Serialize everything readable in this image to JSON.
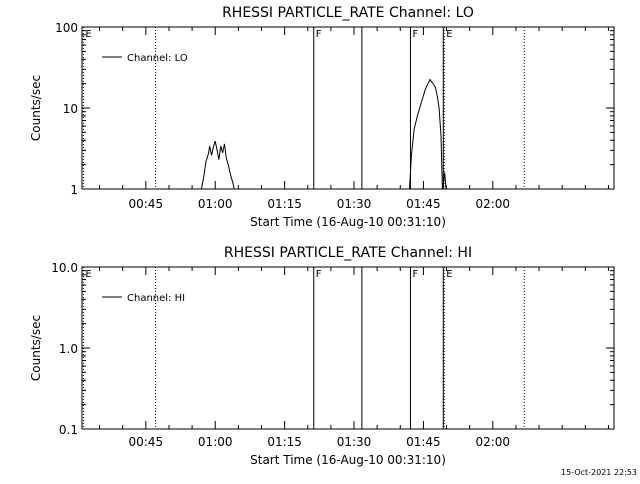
{
  "timestamp": "15-Oct-2021 22:53",
  "chart_data": [
    {
      "type": "line",
      "title": "RHESSI PARTICLE_RATE Channel: LO",
      "xlabel": "Start Time (16-Aug-10 00:31:10)",
      "ylabel": "Counts/sec",
      "y_scale": "log",
      "ylim": [
        1,
        100
      ],
      "y_ticks": [
        "1",
        "10",
        "100"
      ],
      "y_tick_values": [
        1,
        10,
        100
      ],
      "x_unit": "minutes after 00:31:10",
      "xlim": [
        0,
        115
      ],
      "x_ticks": [
        "00:45",
        "01:00",
        "01:15",
        "01:30",
        "01:45",
        "02:00"
      ],
      "x_tick_values": [
        13.8,
        28.8,
        43.8,
        58.8,
        73.8,
        88.8
      ],
      "legend": {
        "position": "top-left",
        "entries": [
          "Channel: LO"
        ]
      },
      "markers": [
        {
          "x": 0.3,
          "label": "E",
          "style": "dotted"
        },
        {
          "x": 15.9,
          "label": "",
          "style": "dotted"
        },
        {
          "x": 50.1,
          "label": "F",
          "style": "solid"
        },
        {
          "x": 60.5,
          "label": "",
          "style": "solid"
        },
        {
          "x": 71.0,
          "label": "F",
          "style": "solid"
        },
        {
          "x": 78.1,
          "label": "",
          "style": "solid"
        },
        {
          "x": 78.3,
          "label": "E",
          "style": "dotted"
        },
        {
          "x": 95.6,
          "label": "",
          "style": "dotted"
        }
      ],
      "series": [
        {
          "name": "Channel: LO",
          "segments": [
            [
              {
                "x": 25.8,
                "y": 1.0
              },
              {
                "x": 26.3,
                "y": 1.4
              },
              {
                "x": 26.8,
                "y": 2.2
              },
              {
                "x": 27.3,
                "y": 2.7
              },
              {
                "x": 27.6,
                "y": 3.4
              },
              {
                "x": 28.0,
                "y": 2.6
              },
              {
                "x": 28.4,
                "y": 3.3
              },
              {
                "x": 28.8,
                "y": 3.9
              },
              {
                "x": 29.2,
                "y": 3.0
              },
              {
                "x": 29.6,
                "y": 2.3
              },
              {
                "x": 30.0,
                "y": 3.4
              },
              {
                "x": 30.4,
                "y": 2.8
              },
              {
                "x": 30.8,
                "y": 3.6
              },
              {
                "x": 31.2,
                "y": 2.4
              },
              {
                "x": 31.6,
                "y": 2.0
              },
              {
                "x": 32.1,
                "y": 1.5
              },
              {
                "x": 32.6,
                "y": 1.2
              },
              {
                "x": 32.9,
                "y": 1.0
              }
            ],
            [
              {
                "x": 70.8,
                "y": 1.0
              },
              {
                "x": 71.2,
                "y": 2.6
              },
              {
                "x": 71.8,
                "y": 5.5
              },
              {
                "x": 72.5,
                "y": 8.0
              },
              {
                "x": 73.4,
                "y": 12.0
              },
              {
                "x": 74.2,
                "y": 17.0
              },
              {
                "x": 74.8,
                "y": 20.0
              },
              {
                "x": 75.2,
                "y": 22.5
              },
              {
                "x": 75.6,
                "y": 21.0
              },
              {
                "x": 76.0,
                "y": 19.5
              },
              {
                "x": 76.4,
                "y": 18.0
              },
              {
                "x": 76.8,
                "y": 14.0
              },
              {
                "x": 77.2,
                "y": 10.0
              },
              {
                "x": 77.6,
                "y": 4.5
              },
              {
                "x": 77.9,
                "y": 1.0
              }
            ],
            [
              {
                "x": 78.0,
                "y": 1.0
              },
              {
                "x": 78.4,
                "y": 1.6
              },
              {
                "x": 78.7,
                "y": 1.0
              }
            ]
          ]
        }
      ]
    },
    {
      "type": "line",
      "title": "RHESSI PARTICLE_RATE Channel: HI",
      "xlabel": "Start Time (16-Aug-10 00:31:10)",
      "ylabel": "Counts/sec",
      "y_scale": "log",
      "ylim": [
        0.1,
        10
      ],
      "y_ticks": [
        "0.1",
        "1.0",
        "10.0"
      ],
      "y_tick_values": [
        0.1,
        1,
        10
      ],
      "x_unit": "minutes after 00:31:10",
      "xlim": [
        0,
        115
      ],
      "x_ticks": [
        "00:45",
        "01:00",
        "01:15",
        "01:30",
        "01:45",
        "02:00"
      ],
      "x_tick_values": [
        13.8,
        28.8,
        43.8,
        58.8,
        73.8,
        88.8
      ],
      "legend": {
        "position": "top-left",
        "entries": [
          "Channel: HI"
        ]
      },
      "markers": [
        {
          "x": 0.3,
          "label": "E",
          "style": "dotted"
        },
        {
          "x": 15.9,
          "label": "",
          "style": "dotted"
        },
        {
          "x": 50.1,
          "label": "F",
          "style": "solid"
        },
        {
          "x": 60.5,
          "label": "",
          "style": "solid"
        },
        {
          "x": 71.0,
          "label": "F",
          "style": "solid"
        },
        {
          "x": 78.1,
          "label": "",
          "style": "solid"
        },
        {
          "x": 78.3,
          "label": "E",
          "style": "dotted"
        },
        {
          "x": 95.6,
          "label": "",
          "style": "dotted"
        }
      ],
      "series": [
        {
          "name": "Channel: HI",
          "segments": []
        }
      ]
    }
  ]
}
